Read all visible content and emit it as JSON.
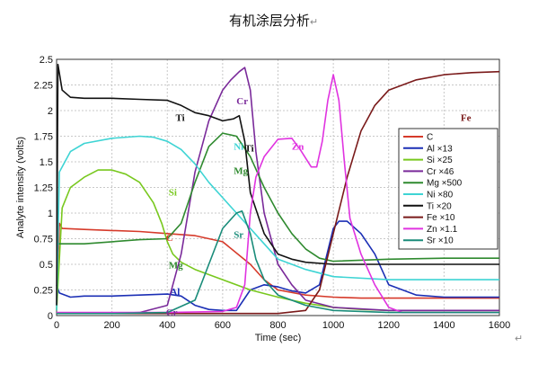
{
  "title": "有机涂层分析",
  "title_mark": "↵",
  "corner_mark": "↵",
  "chart_data": {
    "type": "line",
    "title": "有机涂层分析",
    "xlabel": "Time (sec)",
    "ylabel": "Analyte intensity (volts)",
    "xlim": [
      0,
      1600
    ],
    "ylim": [
      0,
      2.5
    ],
    "xticks": [
      0,
      200,
      400,
      600,
      800,
      1000,
      1200,
      1400,
      1600
    ],
    "yticks": [
      0,
      0.25,
      0.5,
      0.75,
      1,
      1.25,
      1.5,
      1.75,
      2,
      2.25,
      2.5
    ],
    "grid": true,
    "legend_position": "right",
    "series": [
      {
        "name": "C",
        "color": "#d63a2a",
        "x": [
          0,
          10,
          20,
          100,
          200,
          300,
          400,
          500,
          600,
          700,
          750,
          800,
          900,
          1000,
          1100,
          1200,
          1400,
          1600
        ],
        "y": [
          0.05,
          0.9,
          0.85,
          0.84,
          0.83,
          0.82,
          0.8,
          0.78,
          0.72,
          0.5,
          0.35,
          0.25,
          0.2,
          0.18,
          0.17,
          0.17,
          0.17,
          0.17
        ]
      },
      {
        "name": "Al ×13",
        "color": "#1b2fb5",
        "x": [
          0,
          10,
          50,
          100,
          200,
          300,
          400,
          450,
          500,
          550,
          600,
          650,
          700,
          750,
          800,
          850,
          900,
          950,
          1000,
          1020,
          1050,
          1100,
          1150,
          1200,
          1300,
          1400,
          1600
        ],
        "y": [
          0.3,
          0.22,
          0.18,
          0.19,
          0.19,
          0.2,
          0.21,
          0.19,
          0.1,
          0.06,
          0.05,
          0.05,
          0.25,
          0.3,
          0.28,
          0.24,
          0.22,
          0.3,
          0.85,
          0.92,
          0.92,
          0.8,
          0.6,
          0.3,
          0.2,
          0.18,
          0.18
        ]
      },
      {
        "name": "Si ×25",
        "color": "#78c81e",
        "x": [
          0,
          20,
          50,
          100,
          150,
          200,
          250,
          300,
          350,
          380,
          400,
          420,
          450,
          500,
          600,
          700,
          800,
          900,
          1000,
          1100,
          1200,
          1400,
          1600
        ],
        "y": [
          0.05,
          1.05,
          1.25,
          1.35,
          1.42,
          1.42,
          1.38,
          1.3,
          1.1,
          0.9,
          0.72,
          0.6,
          0.52,
          0.45,
          0.35,
          0.25,
          0.18,
          0.12,
          0.08,
          0.06,
          0.05,
          0.05,
          0.05
        ]
      },
      {
        "name": "Cr ×46",
        "color": "#7a2a9a",
        "x": [
          0,
          100,
          200,
          300,
          400,
          450,
          500,
          550,
          600,
          630,
          660,
          680,
          700,
          720,
          750,
          800,
          850,
          900,
          1000,
          1200,
          1600
        ],
        "y": [
          0.02,
          0.02,
          0.02,
          0.03,
          0.1,
          0.6,
          1.4,
          1.9,
          2.2,
          2.3,
          2.38,
          2.42,
          2.2,
          1.6,
          1.0,
          0.5,
          0.3,
          0.15,
          0.08,
          0.05,
          0.05
        ]
      },
      {
        "name": "Mg ×500",
        "color": "#2f8a2f",
        "x": [
          0,
          100,
          200,
          300,
          400,
          450,
          500,
          550,
          600,
          650,
          700,
          750,
          800,
          850,
          900,
          950,
          1000,
          1200,
          1400,
          1600
        ],
        "y": [
          0.7,
          0.7,
          0.72,
          0.74,
          0.75,
          0.9,
          1.3,
          1.65,
          1.78,
          1.75,
          1.55,
          1.25,
          1.0,
          0.8,
          0.65,
          0.56,
          0.53,
          0.55,
          0.56,
          0.56
        ]
      },
      {
        "name": "Ni ×80",
        "color": "#3ed4d4",
        "x": [
          0,
          10,
          50,
          100,
          200,
          300,
          350,
          400,
          450,
          500,
          550,
          600,
          650,
          700,
          750,
          800,
          900,
          1000,
          1200,
          1400,
          1600
        ],
        "y": [
          0.05,
          1.4,
          1.6,
          1.68,
          1.73,
          1.75,
          1.74,
          1.7,
          1.62,
          1.48,
          1.3,
          1.15,
          1.0,
          0.85,
          0.7,
          0.55,
          0.45,
          0.38,
          0.35,
          0.35,
          0.35
        ]
      },
      {
        "name": "Ti ×20",
        "color": "#111111",
        "x": [
          0,
          5,
          20,
          50,
          100,
          200,
          300,
          400,
          450,
          500,
          550,
          600,
          640,
          660,
          680,
          700,
          750,
          800,
          850,
          900,
          1000,
          1200,
          1600
        ],
        "y": [
          0.1,
          2.45,
          2.2,
          2.13,
          2.12,
          2.12,
          2.11,
          2.1,
          2.05,
          1.98,
          1.95,
          1.9,
          1.92,
          1.95,
          1.7,
          1.2,
          0.8,
          0.6,
          0.55,
          0.52,
          0.5,
          0.5,
          0.5
        ]
      },
      {
        "name": "Fe ×10",
        "color": "#7a1a1a",
        "x": [
          0,
          200,
          400,
          600,
          800,
          900,
          950,
          1000,
          1050,
          1100,
          1150,
          1200,
          1300,
          1400,
          1500,
          1600
        ],
        "y": [
          0.02,
          0.02,
          0.02,
          0.02,
          0.02,
          0.05,
          0.25,
          0.8,
          1.35,
          1.8,
          2.05,
          2.2,
          2.3,
          2.35,
          2.37,
          2.38
        ]
      },
      {
        "name": "Zn ×1.1",
        "color": "#e033e0",
        "x": [
          0,
          400,
          600,
          650,
          680,
          700,
          720,
          750,
          800,
          850,
          880,
          920,
          940,
          960,
          980,
          1000,
          1020,
          1040,
          1060,
          1100,
          1150,
          1200,
          1250,
          1600
        ],
        "y": [
          0.03,
          0.03,
          0.04,
          0.08,
          0.3,
          1.0,
          1.35,
          1.55,
          1.72,
          1.73,
          1.62,
          1.45,
          1.45,
          1.7,
          2.1,
          2.35,
          2.1,
          1.5,
          0.95,
          0.6,
          0.3,
          0.08,
          0.03,
          0.03
        ]
      },
      {
        "name": "Sr ×10",
        "color": "#1a8c7a",
        "x": [
          0,
          200,
          400,
          500,
          550,
          600,
          650,
          670,
          700,
          720,
          750,
          800,
          900,
          1000,
          1200,
          1600
        ],
        "y": [
          0.02,
          0.02,
          0.03,
          0.15,
          0.5,
          0.85,
          1.0,
          1.02,
          0.8,
          0.55,
          0.35,
          0.2,
          0.1,
          0.05,
          0.03,
          0.03
        ]
      }
    ],
    "annotations": [
      {
        "text": "Ti",
        "x": 430,
        "y": 1.9,
        "color": "#111111",
        "series": "Ti ×20"
      },
      {
        "text": "Ni",
        "x": 640,
        "y": 1.62,
        "color": "#3ed4d4",
        "series": "Ni ×80"
      },
      {
        "text": "Si",
        "x": 405,
        "y": 1.17,
        "color": "#78c81e",
        "series": "Si ×25"
      },
      {
        "text": "C",
        "x": 395,
        "y": 0.73,
        "color": "#d63a2a",
        "series": "C"
      },
      {
        "text": "Mg",
        "x": 405,
        "y": 0.46,
        "color": "#2f8a2f",
        "series": "Mg ×500"
      },
      {
        "text": "Al",
        "x": 410,
        "y": 0.2,
        "color": "#1b2fb5",
        "series": "Al ×13"
      },
      {
        "text": "Cr",
        "x": 395,
        "y": 0.0,
        "color": "#7a2a9a",
        "series": "Cr ×46"
      },
      {
        "text": "Cr",
        "x": 650,
        "y": 2.06,
        "color": "#7a2a9a",
        "series": "Cr ×46"
      },
      {
        "text": "Ti",
        "x": 680,
        "y": 1.6,
        "color": "#111111",
        "series": "Ti ×20"
      },
      {
        "text": "Mg",
        "x": 640,
        "y": 1.38,
        "color": "#2f8a2f",
        "series": "Mg ×500"
      },
      {
        "text": "Sr",
        "x": 640,
        "y": 0.76,
        "color": "#1a8c7a",
        "series": "Sr ×10"
      },
      {
        "text": "Zn",
        "x": 850,
        "y": 1.62,
        "color": "#e033e0",
        "series": "Zn ×1.1"
      },
      {
        "text": "Fe",
        "x": 1460,
        "y": 1.9,
        "color": "#7a1a1a",
        "series": "Fe ×10"
      }
    ]
  }
}
